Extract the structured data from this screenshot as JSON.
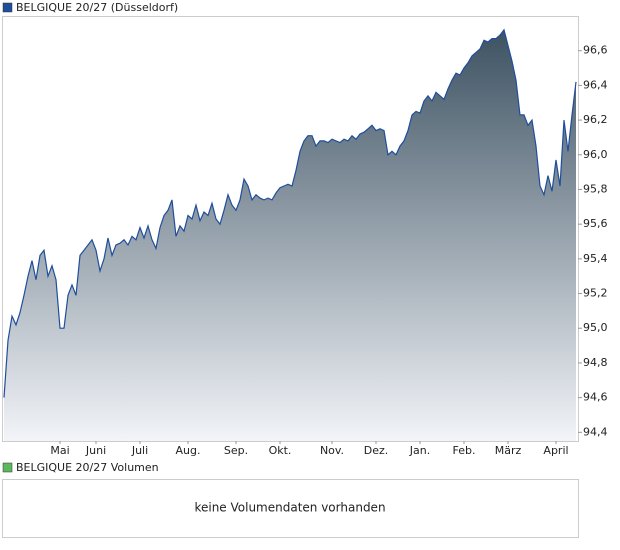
{
  "chart_data": {
    "type": "area",
    "series": [
      {
        "name": "BELGIQUE 20/27 (Düsseldorf)",
        "color": "#1f4e9c",
        "fill_top": "#3d5262",
        "fill_bottom": "#f2f4f8",
        "values": [
          94.6,
          94.93,
          95.07,
          95.02,
          95.09,
          95.19,
          95.3,
          95.39,
          95.28,
          95.42,
          95.45,
          95.3,
          95.36,
          95.28,
          95.0,
          95.0,
          95.19,
          95.25,
          95.19,
          95.42,
          95.45,
          95.48,
          95.51,
          95.45,
          95.33,
          95.4,
          95.52,
          95.42,
          95.48,
          95.49,
          95.51,
          95.48,
          95.53,
          95.51,
          95.58,
          95.52,
          95.59,
          95.51,
          95.46,
          95.58,
          95.65,
          95.68,
          95.74,
          95.53,
          95.59,
          95.56,
          95.65,
          95.63,
          95.71,
          95.62,
          95.67,
          95.65,
          95.72,
          95.63,
          95.6,
          95.68,
          95.77,
          95.71,
          95.68,
          95.74,
          95.86,
          95.82,
          95.74,
          95.77,
          95.75,
          95.74,
          95.75,
          95.74,
          95.78,
          95.81,
          95.82,
          95.83,
          95.82,
          95.91,
          96.02,
          96.08,
          96.11,
          96.11,
          96.05,
          96.08,
          96.08,
          96.07,
          96.09,
          96.08,
          96.07,
          96.09,
          96.08,
          96.11,
          96.09,
          96.12,
          96.13,
          96.15,
          96.17,
          96.14,
          96.15,
          96.14,
          96.0,
          96.02,
          96.0,
          96.05,
          96.08,
          96.14,
          96.23,
          96.25,
          96.24,
          96.31,
          96.34,
          96.31,
          96.36,
          96.34,
          96.32,
          96.38,
          96.43,
          96.47,
          96.46,
          96.5,
          96.53,
          96.57,
          96.59,
          96.61,
          96.66,
          96.65,
          96.67,
          96.67,
          96.69,
          96.72,
          96.63,
          96.54,
          96.43,
          96.23,
          96.23,
          96.17,
          96.2,
          96.05,
          95.82,
          95.77,
          95.88,
          95.79,
          95.97,
          95.82,
          96.2,
          96.02,
          96.23,
          96.42
        ]
      }
    ],
    "ylim": [
      94.35,
      96.8
    ],
    "yticks": [
      {
        "value": 94.4,
        "label": "94,4"
      },
      {
        "value": 94.6,
        "label": "94,6"
      },
      {
        "value": 94.8,
        "label": "94,8"
      },
      {
        "value": 95.0,
        "label": "95,0"
      },
      {
        "value": 95.2,
        "label": "95,2"
      },
      {
        "value": 95.4,
        "label": "95,4"
      },
      {
        "value": 95.6,
        "label": "95,6"
      },
      {
        "value": 95.8,
        "label": "95,8"
      },
      {
        "value": 96.0,
        "label": "96,0"
      },
      {
        "value": 96.2,
        "label": "96,2"
      },
      {
        "value": 96.4,
        "label": "96,4"
      },
      {
        "value": 96.6,
        "label": "96,6"
      }
    ],
    "xticks": [
      {
        "value": 14,
        "label": "Mai"
      },
      {
        "value": 23,
        "label": "Juni"
      },
      {
        "value": 34,
        "label": "Juli"
      },
      {
        "value": 46,
        "label": "Aug."
      },
      {
        "value": 58,
        "label": "Sep."
      },
      {
        "value": 69,
        "label": "Okt."
      },
      {
        "value": 82,
        "label": "Nov."
      },
      {
        "value": 93,
        "label": "Dez."
      },
      {
        "value": 104,
        "label": "Jan."
      },
      {
        "value": 115,
        "label": "Feb."
      },
      {
        "value": 126,
        "label": "März"
      },
      {
        "value": 138,
        "label": "April"
      }
    ],
    "grid": false
  },
  "volume_panel": {
    "title": "BELGIQUE 20/27 Volumen",
    "color": "#5cb85c",
    "message": "keine Volumendaten vorhanden"
  }
}
